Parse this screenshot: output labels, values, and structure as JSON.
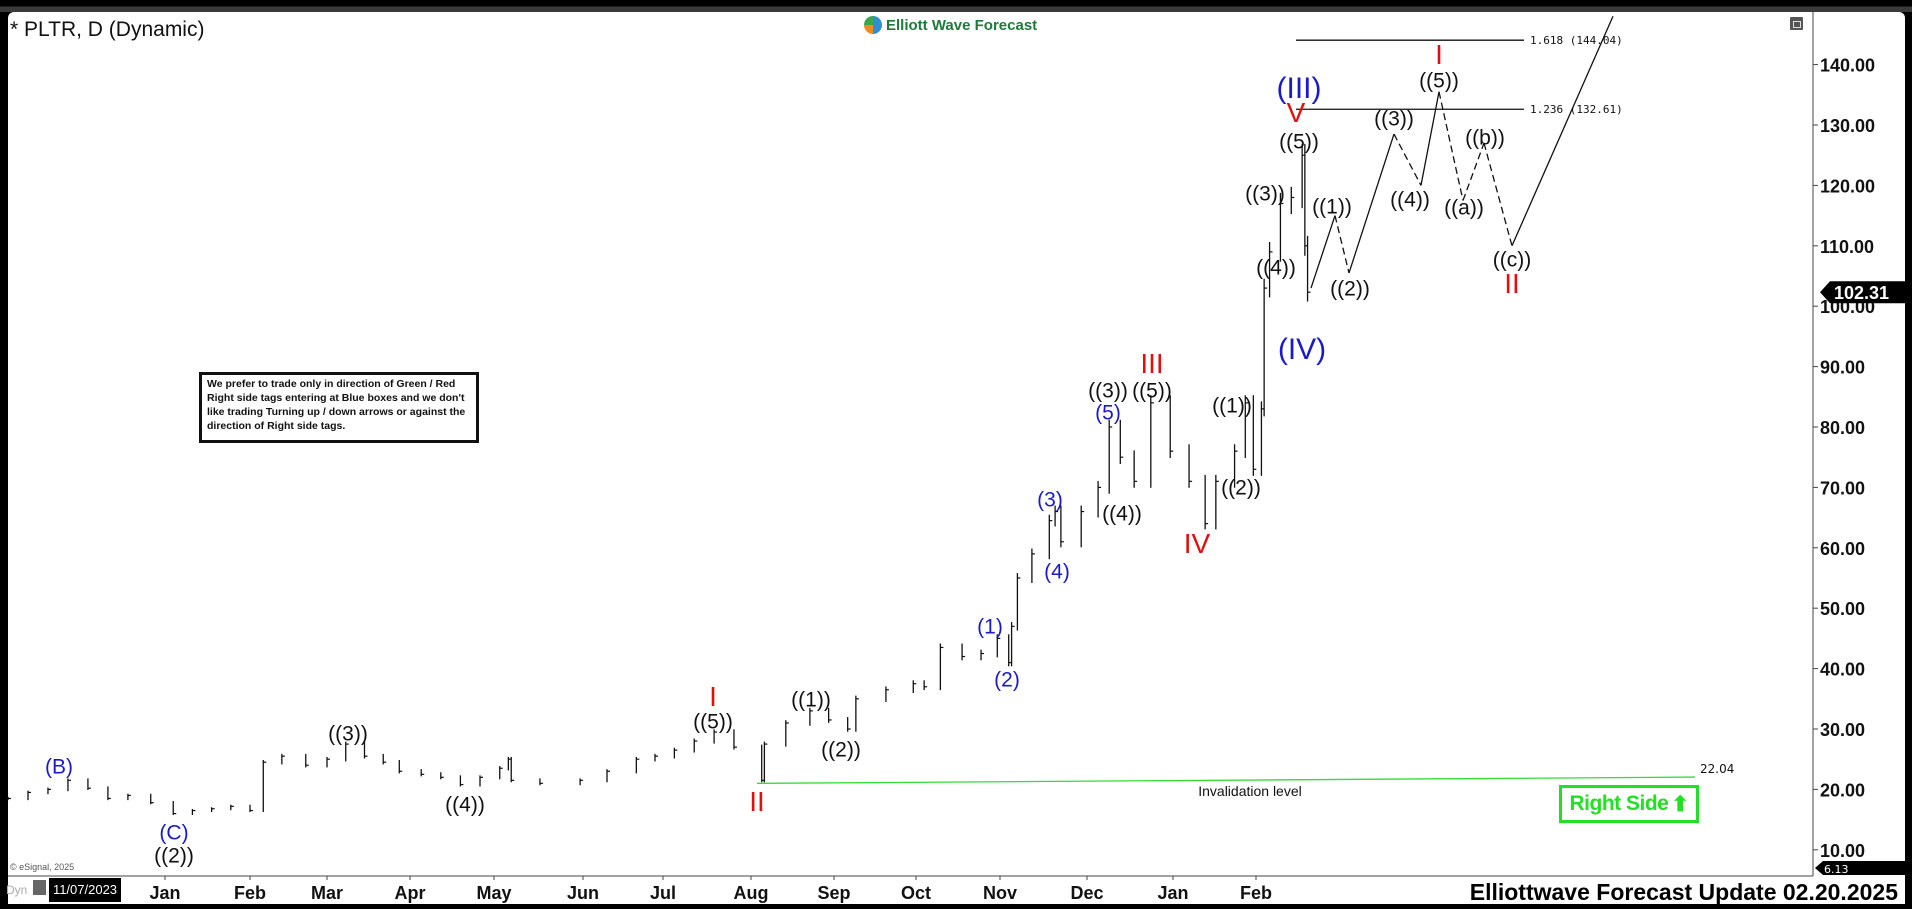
{
  "header": {
    "title": "* PLTR, D (Dynamic)",
    "logo_text": "Elliott Wave Forecast"
  },
  "note": "We prefer to trade only in direction of Green / Red Right side tags entering at Blue boxes and we don't like trading Turning up / down arrows or against the direction of Right side tags.",
  "right_side_tag": {
    "label": "Right Side",
    "arrow": "up-arrow-icon",
    "color": "#22e022"
  },
  "footer": "Elliottwave Forecast Update 02.20.2025",
  "copyright": "© eSignal, 2025",
  "cursor_date": "11/07/2023",
  "dyn_label": "Dyn",
  "colors": {
    "blue_label": "#1a1acc",
    "red_label": "#e01010",
    "black_label": "#111111",
    "invalidation": "#33dd33"
  },
  "chart_data": {
    "type": "ohlc-line",
    "symbol": "PLTR",
    "interval": "D",
    "ylim": [
      6.13,
      148
    ],
    "yticks": [
      10,
      20,
      30,
      40,
      50,
      60,
      70,
      80,
      90,
      100,
      110,
      120,
      130,
      140
    ],
    "ytick_labels": [
      "10.00",
      "20.00",
      "30.00",
      "40.00",
      "50.00",
      "60.00",
      "70.00",
      "80.00",
      "90.00",
      "100.00",
      "110.00",
      "120.00",
      "130.00",
      "140.00"
    ],
    "xtick_labels": [
      "Jan",
      "Feb",
      "Mar",
      "Apr",
      "May",
      "Jun",
      "Jul",
      "Aug",
      "Sep",
      "Oct",
      "Nov",
      "Dec",
      "Jan",
      "Feb"
    ],
    "last_price": "102.31",
    "axis_low_tag": "6.13",
    "grid": false,
    "prices": [
      [
        "2023-11-07",
        18.5
      ],
      [
        "2023-11-14",
        19.5
      ],
      [
        "2023-11-21",
        20.0
      ],
      [
        "2023-11-28",
        21.5
      ],
      [
        "2023-12-05",
        20.2
      ],
      [
        "2023-12-12",
        18.5
      ],
      [
        "2023-12-19",
        19.0
      ],
      [
        "2023-12-27",
        17.8
      ],
      [
        "2024-01-04",
        16.0
      ],
      [
        "2024-01-11",
        16.5
      ],
      [
        "2024-01-18",
        16.8
      ],
      [
        "2024-01-25",
        17.2
      ],
      [
        "2024-02-01",
        16.5
      ],
      [
        "2024-02-06",
        24.5
      ],
      [
        "2024-02-13",
        25.5
      ],
      [
        "2024-02-22",
        24.0
      ],
      [
        "2024-03-01",
        25.0
      ],
      [
        "2024-03-08",
        27.5
      ],
      [
        "2024-03-15",
        25.5
      ],
      [
        "2024-03-22",
        24.5
      ],
      [
        "2024-03-28",
        23.0
      ],
      [
        "2024-04-05",
        22.5
      ],
      [
        "2024-04-12",
        22.0
      ],
      [
        "2024-04-19",
        20.8
      ],
      [
        "2024-04-26",
        22.0
      ],
      [
        "2024-05-03",
        23.5
      ],
      [
        "2024-05-06",
        25.0
      ],
      [
        "2024-05-07",
        21.5
      ],
      [
        "2024-05-17",
        21.0
      ],
      [
        "2024-05-31",
        21.5
      ],
      [
        "2024-06-10",
        23.0
      ],
      [
        "2024-06-21",
        25.0
      ],
      [
        "2024-06-28",
        25.5
      ],
      [
        "2024-07-05",
        26.5
      ],
      [
        "2024-07-12",
        28.0
      ],
      [
        "2024-07-19",
        29.5
      ],
      [
        "2024-07-26",
        27.0
      ],
      [
        "2024-08-05",
        21.5
      ],
      [
        "2024-08-06",
        27.5
      ],
      [
        "2024-08-14",
        31.0
      ],
      [
        "2024-08-23",
        33.0
      ],
      [
        "2024-08-30",
        31.5
      ],
      [
        "2024-09-06",
        30.0
      ],
      [
        "2024-09-09",
        35.0
      ],
      [
        "2024-09-20",
        36.5
      ],
      [
        "2024-09-30",
        37.5
      ],
      [
        "2024-10-04",
        37.0
      ],
      [
        "2024-10-10",
        43.5
      ],
      [
        "2024-10-18",
        42.0
      ],
      [
        "2024-10-25",
        42.5
      ],
      [
        "2024-10-31",
        45.0
      ],
      [
        "2024-11-04",
        41.0
      ],
      [
        "2024-11-05",
        47.0
      ],
      [
        "2024-11-07",
        55.0
      ],
      [
        "2024-11-12",
        59.0
      ],
      [
        "2024-11-18",
        64.5
      ],
      [
        "2024-11-20",
        66.0
      ],
      [
        "2024-11-22",
        61.0
      ],
      [
        "2024-11-29",
        66.0
      ],
      [
        "2024-12-05",
        70.0
      ],
      [
        "2024-12-09",
        80.0
      ],
      [
        "2024-12-13",
        75.0
      ],
      [
        "2024-12-18",
        71.0
      ],
      [
        "2024-12-24",
        84.0
      ],
      [
        "2024-12-31",
        76.0
      ],
      [
        "2025-01-07",
        71.0
      ],
      [
        "2025-01-13",
        64.0
      ],
      [
        "2025-01-17",
        71.0
      ],
      [
        "2025-01-24",
        76.0
      ],
      [
        "2025-01-28",
        84.0
      ],
      [
        "2025-01-31",
        73.0
      ],
      [
        "2025-02-03",
        83.0
      ],
      [
        "2025-02-04",
        103.0
      ],
      [
        "2025-02-06",
        109.0
      ],
      [
        "2025-02-10",
        117.0
      ],
      [
        "2025-02-14",
        118.0
      ],
      [
        "2025-02-18",
        125.0
      ],
      [
        "2025-02-19",
        110.0
      ],
      [
        "2025-02-20",
        102.31
      ]
    ],
    "fib_levels": [
      {
        "label": "1.618 (144.04)",
        "value": 144.04
      },
      {
        "label": "1.236 (132.61)",
        "value": 132.61
      }
    ],
    "invalidation": {
      "label": "Invalidation level",
      "value_label": "22.04",
      "from_value": 21.0,
      "to_value": 22.04
    },
    "projection_path_values": [
      103,
      115,
      105.5,
      128.5,
      120,
      135.5,
      117.5,
      127,
      110,
      148
    ],
    "wave_labels": [
      {
        "text": "(B)",
        "color": "blue"
      },
      {
        "text": "(C)",
        "color": "blue"
      },
      {
        "text": "((2))",
        "color": "black"
      },
      {
        "text": "((3))",
        "color": "black"
      },
      {
        "text": "((4))",
        "color": "black"
      },
      {
        "text": "I",
        "color": "red"
      },
      {
        "text": "((5))",
        "color": "black"
      },
      {
        "text": "II",
        "color": "red"
      },
      {
        "text": "((1))",
        "color": "black"
      },
      {
        "text": "((2))",
        "color": "black"
      },
      {
        "text": "(1)",
        "color": "blue"
      },
      {
        "text": "(2)",
        "color": "blue"
      },
      {
        "text": "(3)",
        "color": "blue"
      },
      {
        "text": "(4)",
        "color": "blue"
      },
      {
        "text": "(5)",
        "color": "blue"
      },
      {
        "text": "((3))",
        "color": "black"
      },
      {
        "text": "((5))",
        "color": "black"
      },
      {
        "text": "III",
        "color": "red"
      },
      {
        "text": "((4))",
        "color": "black"
      },
      {
        "text": "IV",
        "color": "red"
      },
      {
        "text": "((1))",
        "color": "black"
      },
      {
        "text": "((2))",
        "color": "black"
      },
      {
        "text": "(III)",
        "color": "blue"
      },
      {
        "text": "V",
        "color": "red"
      },
      {
        "text": "((5))",
        "color": "black"
      },
      {
        "text": "((3))",
        "color": "black"
      },
      {
        "text": "((4))",
        "color": "black"
      },
      {
        "text": "(IV)",
        "color": "blue"
      },
      {
        "text": "((1))",
        "color": "black"
      },
      {
        "text": "((2))",
        "color": "black"
      },
      {
        "text": "((3))",
        "color": "black"
      },
      {
        "text": "((4))",
        "color": "black"
      },
      {
        "text": "I",
        "color": "red"
      },
      {
        "text": "((5))",
        "color": "black"
      },
      {
        "text": "((b))",
        "color": "black"
      },
      {
        "text": "((a))",
        "color": "black"
      },
      {
        "text": "((c))",
        "color": "black"
      },
      {
        "text": "II",
        "color": "red"
      }
    ]
  }
}
